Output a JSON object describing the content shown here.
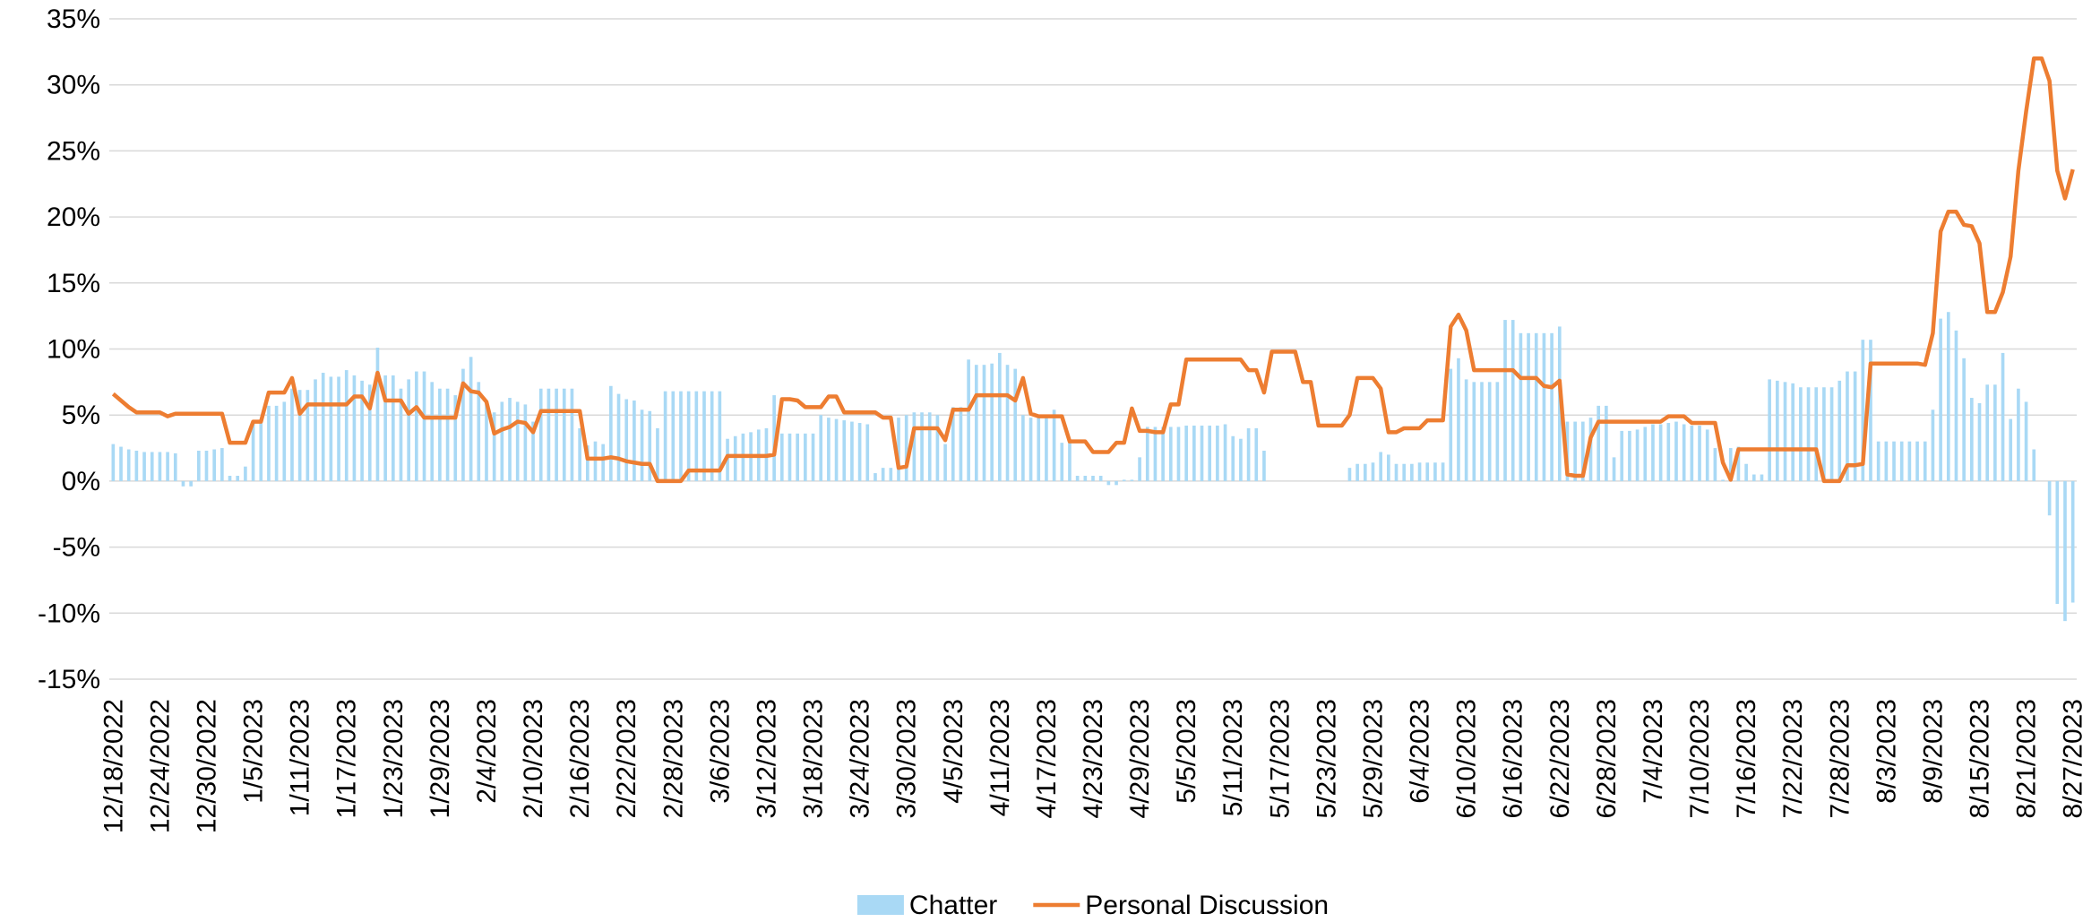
{
  "chart_data": {
    "type": "bar",
    "ylim": [
      -15,
      35
    ],
    "yticks": [
      {
        "value": -15,
        "label": "-15%"
      },
      {
        "value": -10,
        "label": "-10%"
      },
      {
        "value": -5,
        "label": "-5%"
      },
      {
        "value": 0,
        "label": "0%"
      },
      {
        "value": 5,
        "label": "5%"
      },
      {
        "value": 10,
        "label": "10%"
      },
      {
        "value": 15,
        "label": "15%"
      },
      {
        "value": 20,
        "label": "20%"
      },
      {
        "value": 25,
        "label": "25%"
      },
      {
        "value": 30,
        "label": "30%"
      },
      {
        "value": 35,
        "label": "35%"
      }
    ],
    "grid": true,
    "legend": "bottom",
    "categories": [
      "12/18/2022",
      null,
      null,
      null,
      null,
      null,
      "12/24/2022",
      null,
      null,
      null,
      null,
      null,
      "12/30/2022",
      null,
      null,
      null,
      null,
      null,
      "1/5/2023",
      null,
      null,
      null,
      null,
      null,
      "1/11/2023",
      null,
      null,
      null,
      null,
      null,
      "1/17/2023",
      null,
      null,
      null,
      null,
      null,
      "1/23/2023",
      null,
      null,
      null,
      null,
      null,
      "1/29/2023",
      null,
      null,
      null,
      null,
      null,
      "2/4/2023",
      null,
      null,
      null,
      null,
      null,
      "2/10/2023",
      null,
      null,
      null,
      null,
      null,
      "2/16/2023",
      null,
      null,
      null,
      null,
      null,
      "2/22/2023",
      null,
      null,
      null,
      null,
      null,
      "2/28/2023",
      null,
      null,
      null,
      null,
      null,
      "3/6/2023",
      null,
      null,
      null,
      null,
      null,
      "3/12/2023",
      null,
      null,
      null,
      null,
      null,
      "3/18/2023",
      null,
      null,
      null,
      null,
      null,
      "3/24/2023",
      null,
      null,
      null,
      null,
      null,
      "3/30/2023",
      null,
      null,
      null,
      null,
      null,
      "4/5/2023",
      null,
      null,
      null,
      null,
      null,
      "4/11/2023",
      null,
      null,
      null,
      null,
      null,
      "4/17/2023",
      null,
      null,
      null,
      null,
      null,
      "4/23/2023",
      null,
      null,
      null,
      null,
      null,
      "4/29/2023",
      null,
      null,
      null,
      null,
      null,
      "5/5/2023",
      null,
      null,
      null,
      null,
      null,
      "5/11/2023",
      null,
      null,
      null,
      null,
      null,
      "5/17/2023",
      null,
      null,
      null,
      null,
      null,
      "5/23/2023",
      null,
      null,
      null,
      null,
      null,
      "5/29/2023",
      null,
      null,
      null,
      null,
      null,
      "6/4/2023",
      null,
      null,
      null,
      null,
      null,
      "6/10/2023",
      null,
      null,
      null,
      null,
      null,
      "6/16/2023",
      null,
      null,
      null,
      null,
      null,
      "6/22/2023",
      null,
      null,
      null,
      null,
      null,
      "6/28/2023",
      null,
      null,
      null,
      null,
      null,
      "7/4/2023",
      null,
      null,
      null,
      null,
      null,
      "7/10/2023",
      null,
      null,
      null,
      null,
      null,
      "7/16/2023",
      null,
      null,
      null,
      null,
      null,
      "7/22/2023",
      null,
      null,
      null,
      null,
      null,
      "7/28/2023",
      null,
      null,
      null,
      null,
      null,
      "8/3/2023",
      null,
      null,
      null,
      null,
      null,
      "8/9/2023",
      null,
      null,
      null,
      null,
      null,
      "8/15/2023",
      null,
      null,
      null,
      null,
      null,
      "8/21/2023",
      null,
      null,
      null,
      null,
      null,
      "8/27/2023"
    ],
    "series": [
      {
        "name": "Chatter",
        "type": "bar",
        "color": "#a9d9f5",
        "values": [
          2.8,
          2.6,
          2.4,
          2.3,
          2.2,
          2.2,
          2.2,
          2.2,
          2.1,
          -0.4,
          -0.4,
          2.3,
          2.3,
          2.4,
          2.5,
          0.4,
          0.4,
          1.1,
          4.5,
          4.5,
          5.7,
          5.7,
          6.0,
          7.0,
          6.9,
          6.9,
          7.7,
          8.2,
          7.9,
          7.9,
          8.4,
          8.0,
          7.6,
          7.3,
          10.1,
          8.0,
          8.0,
          7.0,
          7.7,
          8.3,
          8.3,
          7.5,
          7.0,
          7.0,
          6.5,
          8.5,
          9.4,
          7.5,
          6.0,
          5.2,
          6.0,
          6.3,
          6.0,
          5.8,
          4.5,
          7.0,
          7.0,
          7.0,
          7.0,
          7.0,
          4.0,
          2.7,
          3.0,
          2.8,
          7.2,
          6.6,
          6.2,
          6.1,
          5.4,
          5.3,
          4.0,
          6.8,
          6.8,
          6.8,
          6.8,
          6.8,
          6.8,
          6.8,
          6.8,
          3.2,
          3.4,
          3.6,
          3.7,
          3.9,
          4.0,
          6.5,
          3.6,
          3.6,
          3.6,
          3.6,
          3.6,
          5.0,
          4.8,
          4.7,
          4.6,
          4.5,
          4.4,
          4.3,
          0.6,
          1.0,
          1.0,
          4.8,
          5.0,
          5.2,
          5.2,
          5.2,
          5.0,
          2.8,
          5.6,
          5.6,
          9.2,
          8.8,
          8.8,
          8.9,
          9.7,
          8.8,
          8.5,
          5.0,
          4.8,
          4.8,
          4.8,
          5.4,
          2.9,
          2.9,
          0.4,
          0.4,
          0.4,
          0.4,
          -0.3,
          -0.3,
          0.1,
          0.1,
          1.8,
          4.1,
          4.1,
          4.1,
          4.1,
          4.1,
          4.2,
          4.2,
          4.2,
          4.2,
          4.2,
          4.3,
          3.4,
          3.2,
          4.0,
          4.0,
          2.3,
          0,
          0,
          0,
          0,
          0,
          0,
          0,
          0,
          0,
          0,
          1.0,
          1.3,
          1.3,
          1.4,
          2.2,
          2.0,
          1.3,
          1.3,
          1.3,
          1.4,
          1.4,
          1.4,
          1.4,
          8.5,
          9.3,
          7.7,
          7.5,
          7.5,
          7.5,
          7.5,
          12.2,
          12.2,
          11.2,
          11.2,
          11.2,
          11.2,
          11.2,
          11.7,
          4.5,
          4.5,
          4.5,
          4.8,
          5.7,
          5.7,
          1.8,
          3.8,
          3.8,
          3.9,
          4.1,
          4.3,
          4.3,
          4.4,
          4.5,
          4.3,
          4.2,
          4.2,
          3.9,
          2.5,
          0.1,
          2.5,
          2.6,
          1.3,
          0.5,
          0.5,
          7.7,
          7.6,
          7.5,
          7.4,
          7.1,
          7.1,
          7.1,
          7.1,
          7.1,
          7.6,
          8.3,
          8.3,
          10.7,
          10.7,
          3.0,
          3.0,
          3.0,
          3.0,
          3.0,
          3.0,
          3.0,
          5.4,
          12.3,
          12.8,
          11.4,
          9.3,
          6.3,
          5.9,
          7.3,
          7.3,
          9.7,
          4.7,
          7.0,
          6.0,
          2.4,
          0,
          -2.6,
          -9.3,
          -10.6,
          -9.2
        ]
      },
      {
        "name": "Personal Discussion",
        "type": "line",
        "color": "#ed7d31",
        "values": [
          6.6,
          6.1,
          5.6,
          5.2,
          5.2,
          5.2,
          5.2,
          4.9,
          5.1,
          5.1,
          5.1,
          5.1,
          5.1,
          5.1,
          5.1,
          2.9,
          2.9,
          2.9,
          4.5,
          4.5,
          6.7,
          6.7,
          6.7,
          7.8,
          5.1,
          5.8,
          5.8,
          5.8,
          5.8,
          5.8,
          5.8,
          6.4,
          6.4,
          5.5,
          8.2,
          6.1,
          6.1,
          6.1,
          5.1,
          5.6,
          4.8,
          4.8,
          4.8,
          4.8,
          4.8,
          7.4,
          6.8,
          6.7,
          6.0,
          3.6,
          3.9,
          4.1,
          4.5,
          4.4,
          3.7,
          5.3,
          5.3,
          5.3,
          5.3,
          5.3,
          5.3,
          1.7,
          1.7,
          1.7,
          1.8,
          1.7,
          1.5,
          1.4,
          1.3,
          1.3,
          0,
          0,
          0,
          0,
          0.8,
          0.8,
          0.8,
          0.8,
          0.8,
          1.9,
          1.9,
          1.9,
          1.9,
          1.9,
          1.9,
          2.0,
          6.2,
          6.2,
          6.1,
          5.6,
          5.6,
          5.6,
          6.4,
          6.4,
          5.2,
          5.2,
          5.2,
          5.2,
          5.2,
          4.8,
          4.8,
          1.0,
          1.1,
          4.0,
          4.0,
          4.0,
          4.0,
          3.1,
          5.4,
          5.4,
          5.4,
          6.5,
          6.5,
          6.5,
          6.5,
          6.5,
          6.1,
          7.8,
          5.1,
          4.9,
          4.9,
          4.9,
          4.9,
          3.0,
          3.0,
          3.0,
          2.2,
          2.2,
          2.2,
          2.9,
          2.9,
          5.5,
          3.8,
          3.8,
          3.7,
          3.7,
          5.8,
          5.8,
          9.2,
          9.2,
          9.2,
          9.2,
          9.2,
          9.2,
          9.2,
          9.2,
          8.4,
          8.4,
          6.7,
          9.8,
          9.8,
          9.8,
          9.8,
          7.5,
          7.5,
          4.2,
          4.2,
          4.2,
          4.2,
          5.0,
          7.8,
          7.8,
          7.8,
          7.0,
          3.7,
          3.7,
          4.0,
          4.0,
          4.0,
          4.6,
          4.6,
          4.6,
          11.7,
          12.6,
          11.4,
          8.4,
          8.4,
          8.4,
          8.4,
          8.4,
          8.4,
          7.8,
          7.8,
          7.8,
          7.2,
          7.1,
          7.6,
          0.5,
          0.4,
          0.4,
          3.3,
          4.5,
          4.5,
          4.5,
          4.5,
          4.5,
          4.5,
          4.5,
          4.5,
          4.5,
          4.9,
          4.9,
          4.9,
          4.4,
          4.4,
          4.4,
          4.4,
          1.4,
          0.1,
          2.4,
          2.4,
          2.4,
          2.4,
          2.4,
          2.4,
          2.4,
          2.4,
          2.4,
          2.4,
          2.4,
          0,
          0,
          0,
          1.2,
          1.2,
          1.3,
          8.9,
          8.9,
          8.9,
          8.9,
          8.9,
          8.9,
          8.9,
          8.8,
          11.2,
          18.9,
          20.4,
          20.4,
          19.4,
          19.3,
          18.0,
          12.8,
          12.8,
          14.3,
          17.0,
          23.5,
          28.0,
          32.0,
          32.0,
          30.3,
          23.5,
          21.4,
          23.6
        ]
      }
    ]
  }
}
